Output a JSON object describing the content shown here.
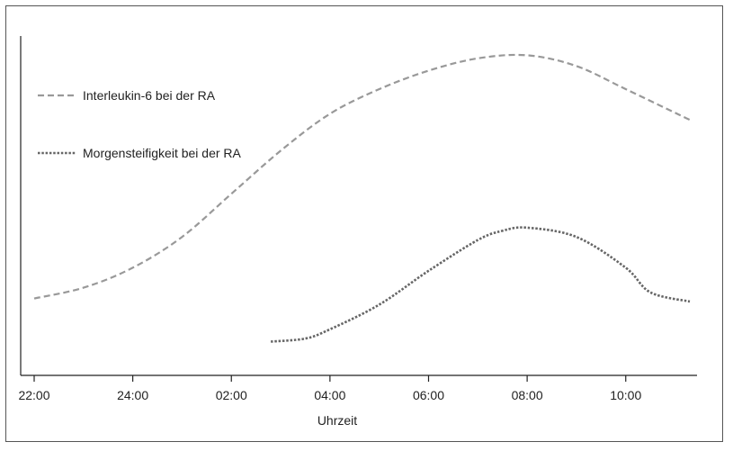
{
  "chart_data": {
    "type": "line",
    "title": "",
    "xlabel": "Uhrzeit",
    "ylabel": "",
    "x_ticks": [
      "22:00",
      "24:00",
      "02:00",
      "04:00",
      "06:00",
      "08:00",
      "10:00"
    ],
    "xlim": [
      0,
      13.3
    ],
    "ylim": [
      0,
      1
    ],
    "grid": false,
    "legend_position": "top-left",
    "series": [
      {
        "name": "Interleukin-6 bei der RA",
        "style": "dashed",
        "color": "#999999",
        "x": [
          0,
          1,
          2,
          3,
          4,
          5,
          6,
          7,
          8,
          9,
          10,
          11,
          12,
          13.3
        ],
        "y": [
          0.2,
          0.235,
          0.3,
          0.4,
          0.54,
          0.68,
          0.8,
          0.88,
          0.94,
          0.98,
          0.99,
          0.955,
          0.88,
          0.78
        ]
      },
      {
        "name": "Morgensteifigkeit bei der RA",
        "style": "dotted",
        "color": "#666666",
        "x": [
          4.8,
          5.5,
          6,
          7,
          8,
          9,
          9.5,
          10,
          11,
          12,
          12.5,
          13.3
        ],
        "y": [
          0.06,
          0.07,
          0.1,
          0.18,
          0.29,
          0.39,
          0.42,
          0.43,
          0.4,
          0.3,
          0.22,
          0.19
        ]
      }
    ]
  }
}
